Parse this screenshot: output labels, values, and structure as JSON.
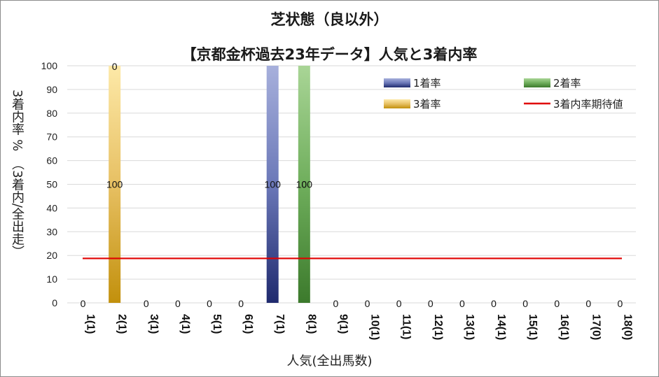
{
  "chart_data": {
    "type": "bar",
    "title": "芝状態（良以外）",
    "subtitle": "【京都金杯過去23年データ】人気と3着内率",
    "xlabel": "人気(全出馬数)",
    "ylabel": "3着内率 %　（3着内/全出走）",
    "ylim": [
      0,
      100
    ],
    "yticks": [
      0,
      10,
      20,
      30,
      40,
      50,
      60,
      70,
      80,
      90,
      100
    ],
    "categories": [
      "1(1)",
      "2(1)",
      "3(1)",
      "4(1)",
      "5(1)",
      "6(1)",
      "7(1)",
      "8(1)",
      "9(1)",
      "10(1)",
      "11(1)",
      "12(1)",
      "13(1)",
      "14(1)",
      "15(1)",
      "16(1)",
      "17(0)",
      "18(0)"
    ],
    "series": [
      {
        "name": "1着率",
        "color": "#2b3a8c",
        "values": [
          0,
          0,
          0,
          0,
          0,
          0,
          100,
          0,
          0,
          0,
          0,
          0,
          0,
          0,
          0,
          0,
          0,
          0
        ]
      },
      {
        "name": "2着率",
        "color": "#4a8a3a",
        "values": [
          0,
          0,
          0,
          0,
          0,
          0,
          0,
          100,
          0,
          0,
          0,
          0,
          0,
          0,
          0,
          0,
          0,
          0
        ]
      },
      {
        "name": "3着率",
        "color": "#c99a10",
        "values": [
          0,
          100,
          0,
          0,
          0,
          0,
          0,
          0,
          0,
          0,
          0,
          0,
          0,
          0,
          0,
          0,
          0,
          0
        ]
      }
    ],
    "line": {
      "name": "3着内率期待値",
      "color": "#e00000",
      "value": 18.75
    },
    "data_labels": [
      "0",
      "100",
      "0",
      "0",
      "0",
      "0",
      "100",
      "0",
      "0",
      "0",
      "0",
      "0",
      "0",
      "0",
      "0",
      "0",
      "0",
      "0"
    ],
    "extra_labels": [
      {
        "category": "2(1)",
        "text": "0",
        "at": 100
      },
      {
        "category": "8(1)",
        "text": "100",
        "at": 50
      }
    ],
    "legend_position": "top-right",
    "grid": true
  }
}
